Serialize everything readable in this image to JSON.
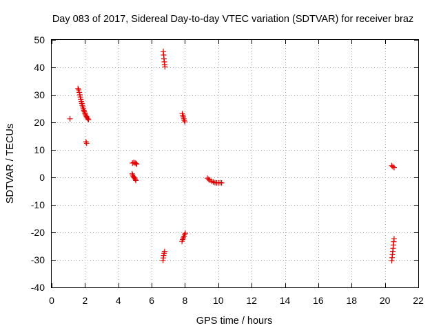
{
  "chart_data": {
    "type": "scatter",
    "title": "Day 083 of 2017, Sidereal Day-to-day VTEC variation (SDTVAR) for receiver braz",
    "xlabel": "GPS time / hours",
    "ylabel": "SDTVAR / TECUs",
    "xlim": [
      0,
      22
    ],
    "ylim": [
      -40,
      50
    ],
    "xticks": [
      0,
      2,
      4,
      6,
      8,
      10,
      12,
      14,
      16,
      18,
      20,
      22
    ],
    "yticks": [
      -40,
      -30,
      -20,
      -10,
      0,
      10,
      20,
      30,
      40,
      50
    ],
    "xtick_labels": [
      "0",
      "2",
      "4",
      "6",
      "8",
      "10",
      "12",
      "14",
      "16",
      "18",
      "20",
      "22"
    ],
    "ytick_labels": [
      "-40",
      "-30",
      "-20",
      "-10",
      "0",
      "10",
      "20",
      "30",
      "40",
      "50"
    ],
    "grid": true,
    "marker": "+",
    "color": "#e00000",
    "series": [
      {
        "name": "SDTVAR",
        "points": [
          [
            1.1,
            21.3
          ],
          [
            1.58,
            32.3
          ],
          [
            1.62,
            31.8
          ],
          [
            1.66,
            30.9
          ],
          [
            1.69,
            30.0
          ],
          [
            1.72,
            29.2
          ],
          [
            1.75,
            28.4
          ],
          [
            1.78,
            27.6
          ],
          [
            1.81,
            26.9
          ],
          [
            1.84,
            26.2
          ],
          [
            1.87,
            25.6
          ],
          [
            1.9,
            25.0
          ],
          [
            1.93,
            24.4
          ],
          [
            1.96,
            23.9
          ],
          [
            1.99,
            23.4
          ],
          [
            2.02,
            23.0
          ],
          [
            2.05,
            22.5
          ],
          [
            2.09,
            22.1
          ],
          [
            2.13,
            21.7
          ],
          [
            2.17,
            21.3
          ],
          [
            2.21,
            21.0
          ],
          [
            2.06,
            12.9
          ],
          [
            2.1,
            12.4
          ],
          [
            4.85,
            5.2
          ],
          [
            4.92,
            5.4
          ],
          [
            5.0,
            5.3
          ],
          [
            5.06,
            5.1
          ],
          [
            5.1,
            4.8
          ],
          [
            4.83,
            1.3
          ],
          [
            4.86,
            0.8
          ],
          [
            4.9,
            0.3
          ],
          [
            4.94,
            0.0
          ],
          [
            4.98,
            -0.3
          ],
          [
            5.02,
            -0.7
          ],
          [
            5.05,
            -1.1
          ],
          [
            6.7,
            45.8
          ],
          [
            6.72,
            44.5
          ],
          [
            6.74,
            43.1
          ],
          [
            6.76,
            42.0
          ],
          [
            6.78,
            41.0
          ],
          [
            6.8,
            40.2
          ],
          [
            6.68,
            -30.2
          ],
          [
            6.7,
            -29.3
          ],
          [
            6.72,
            -28.4
          ],
          [
            6.75,
            -27.6
          ],
          [
            6.78,
            -26.9
          ],
          [
            7.84,
            23.2
          ],
          [
            7.87,
            22.6
          ],
          [
            7.9,
            22.0
          ],
          [
            7.93,
            21.3
          ],
          [
            7.96,
            20.7
          ],
          [
            7.99,
            20.2
          ],
          [
            7.82,
            -23.3
          ],
          [
            7.86,
            -22.6
          ],
          [
            7.9,
            -22.0
          ],
          [
            7.94,
            -21.4
          ],
          [
            7.98,
            -20.8
          ],
          [
            8.02,
            -20.3
          ],
          [
            9.35,
            -0.3
          ],
          [
            9.42,
            -0.7
          ],
          [
            9.5,
            -1.0
          ],
          [
            9.6,
            -1.4
          ],
          [
            9.7,
            -1.7
          ],
          [
            9.8,
            -1.9
          ],
          [
            9.9,
            -2.0
          ],
          [
            10.0,
            -2.0
          ],
          [
            10.1,
            -1.9
          ],
          [
            10.2,
            -2.0
          ],
          [
            20.4,
            4.3
          ],
          [
            20.47,
            3.9
          ],
          [
            20.55,
            3.6
          ],
          [
            20.41,
            -30.3
          ],
          [
            20.43,
            -29.2
          ],
          [
            20.45,
            -28.1
          ],
          [
            20.47,
            -26.9
          ],
          [
            20.49,
            -25.8
          ],
          [
            20.51,
            -24.6
          ],
          [
            20.53,
            -23.4
          ],
          [
            20.55,
            -22.3
          ]
        ]
      }
    ]
  }
}
